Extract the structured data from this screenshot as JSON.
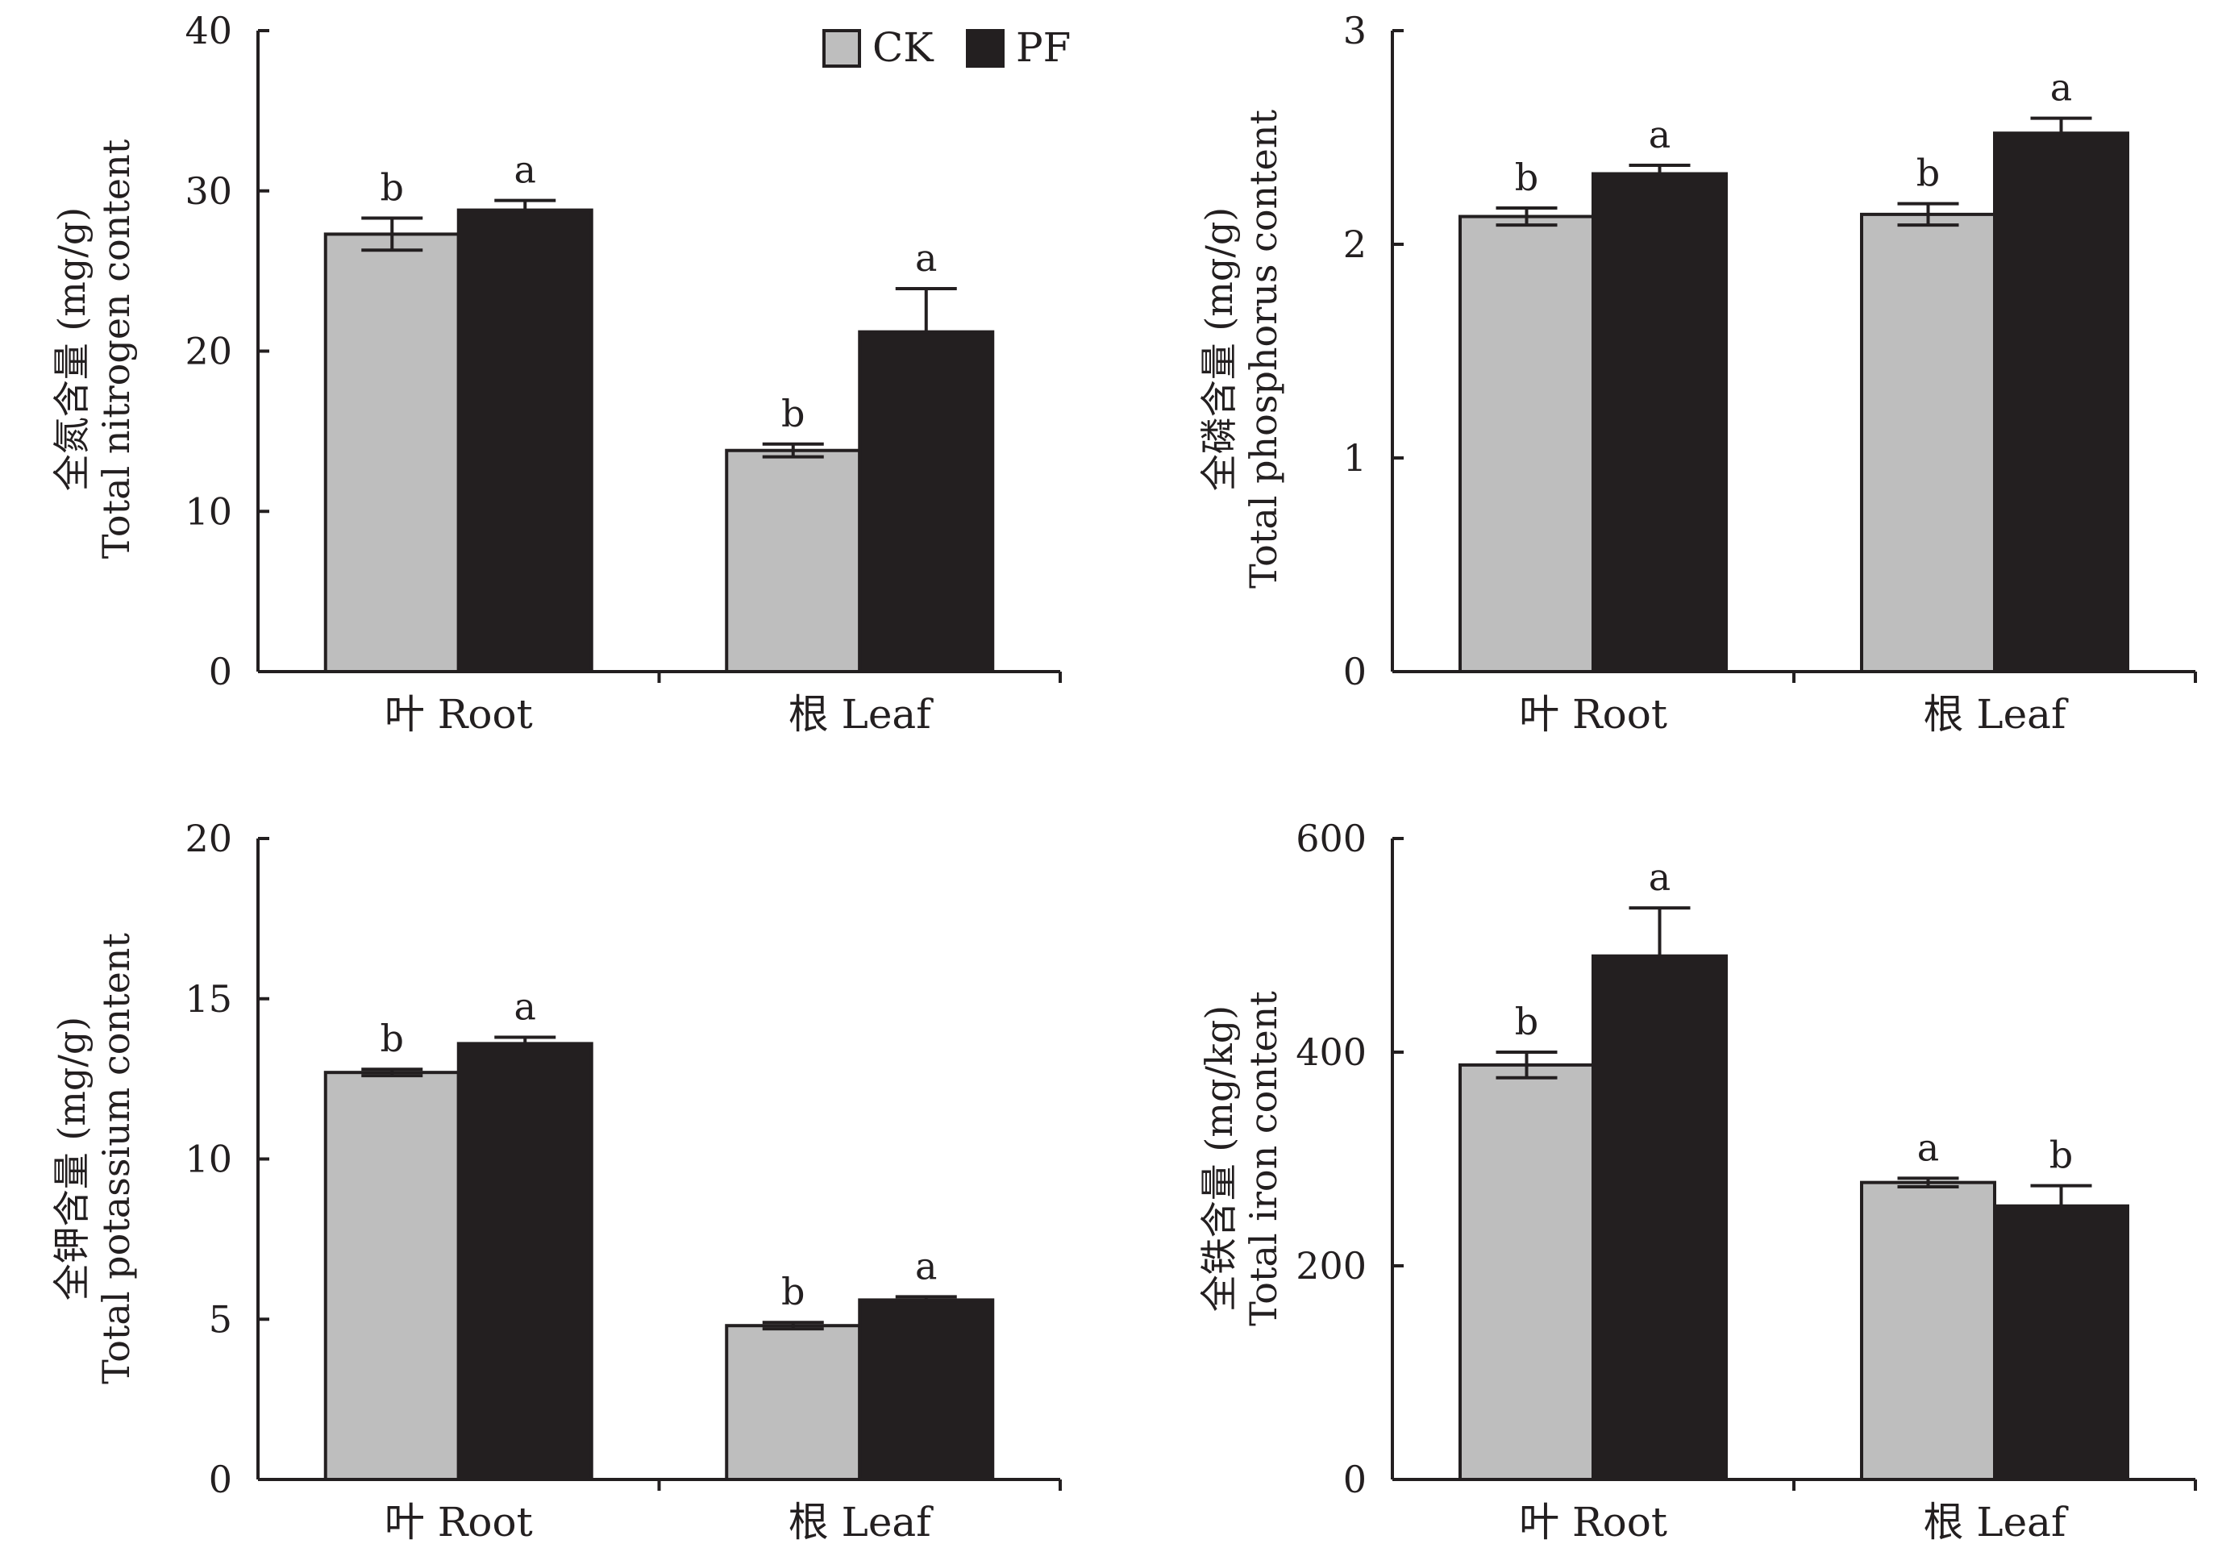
{
  "colors": {
    "CK": "#bebebe",
    "PF": "#231f20",
    "axis": "#231f20"
  },
  "legend": [
    {
      "key": "CK",
      "label": "CK"
    },
    {
      "key": "PF",
      "label": "PF"
    }
  ],
  "chart_data": [
    {
      "type": "bar",
      "categories": [
        "叶 Root",
        "根 Leaf"
      ],
      "ylabel_cn": "全氮含量 (mg/g)",
      "ylabel_en": "Total nitrogen content",
      "ylim": [
        0,
        40
      ],
      "yticks": [
        0,
        10,
        20,
        30,
        40
      ],
      "series": [
        {
          "name": "CK",
          "values": [
            27.3,
            13.8
          ],
          "errors": [
            1.0,
            0.4
          ],
          "letters": [
            "b",
            "b"
          ]
        },
        {
          "name": "PF",
          "values": [
            28.8,
            21.2
          ],
          "errors": [
            0.6,
            2.7
          ],
          "letters": [
            "a",
            "a"
          ]
        }
      ]
    },
    {
      "type": "bar",
      "categories": [
        "叶 Root",
        "根 Leaf"
      ],
      "ylabel_cn": "全磷含量 (mg/g)",
      "ylabel_en": "Total phosphorus content",
      "ylim": [
        0,
        3
      ],
      "yticks": [
        0,
        1,
        2,
        3
      ],
      "series": [
        {
          "name": "CK",
          "values": [
            2.13,
            2.14
          ],
          "errors": [
            0.04,
            0.05
          ],
          "letters": [
            "b",
            "b"
          ]
        },
        {
          "name": "PF",
          "values": [
            2.33,
            2.52
          ],
          "errors": [
            0.04,
            0.07
          ],
          "letters": [
            "a",
            "a"
          ]
        }
      ]
    },
    {
      "type": "bar",
      "categories": [
        "叶 Root",
        "根 Leaf"
      ],
      "ylabel_cn": "全钾含量 (mg/g)",
      "ylabel_en": "Total potassium content",
      "ylim": [
        0,
        20
      ],
      "yticks": [
        0,
        5,
        10,
        15,
        20
      ],
      "series": [
        {
          "name": "CK",
          "values": [
            12.7,
            4.8
          ],
          "errors": [
            0.1,
            0.1
          ],
          "letters": [
            "b",
            "b"
          ]
        },
        {
          "name": "PF",
          "values": [
            13.6,
            5.6
          ],
          "errors": [
            0.2,
            0.1
          ],
          "letters": [
            "a",
            "a"
          ]
        }
      ]
    },
    {
      "type": "bar",
      "categories": [
        "叶 Root",
        "根 Leaf"
      ],
      "ylabel_cn": "全铁含量 (mg/kg)",
      "ylabel_en": "Total iron content",
      "ylim": [
        0,
        600
      ],
      "yticks": [
        0,
        200,
        400,
        600
      ],
      "series": [
        {
          "name": "CK",
          "values": [
            388,
            278
          ],
          "errors": [
            12,
            4
          ],
          "letters": [
            "b",
            "a"
          ]
        },
        {
          "name": "PF",
          "values": [
            490,
            256
          ],
          "errors": [
            45,
            19
          ],
          "letters": [
            "a",
            "b"
          ]
        }
      ]
    }
  ]
}
